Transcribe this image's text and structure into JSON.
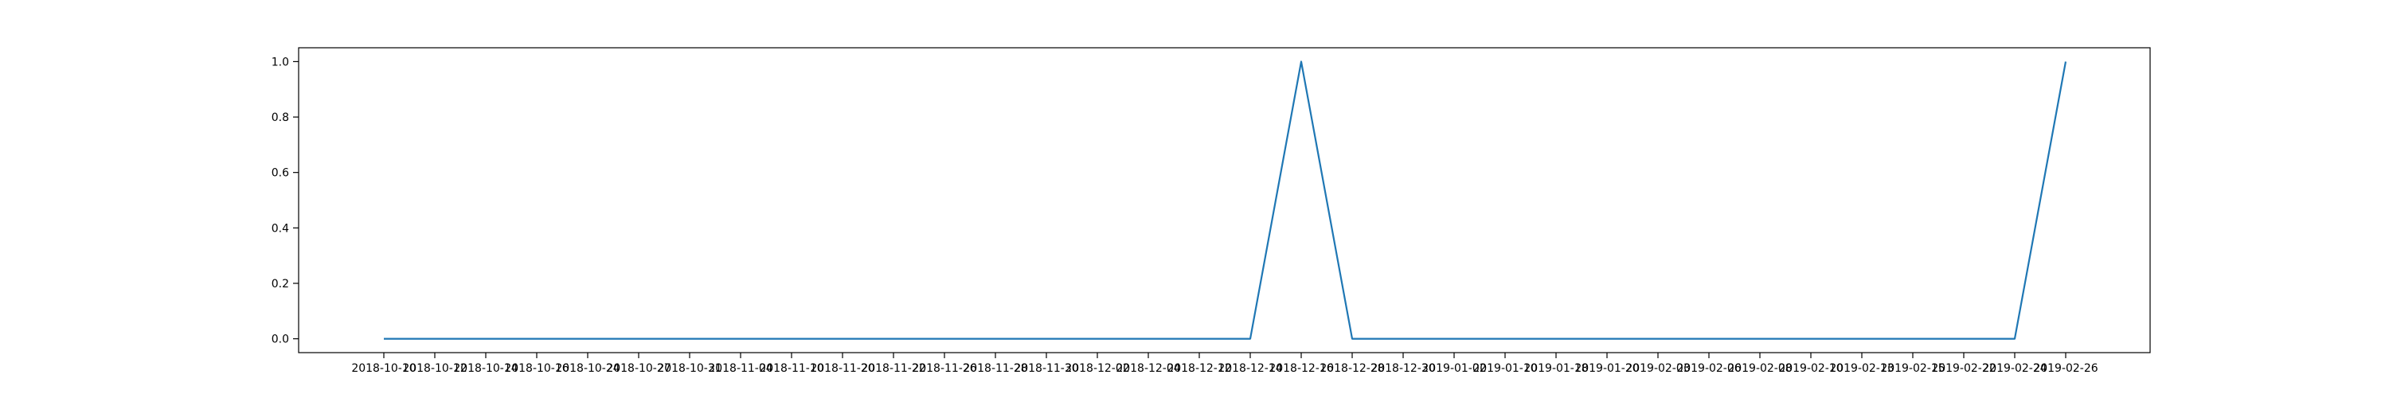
{
  "chart_data": {
    "type": "line",
    "title": "",
    "xlabel": "",
    "ylabel": "",
    "grid": false,
    "ylim": [
      -0.05,
      1.05
    ],
    "y_ticks": [
      "0.0",
      "0.2",
      "0.4",
      "0.6",
      "0.8",
      "1.0"
    ],
    "y_tick_values": [
      0,
      0.2,
      0.4,
      0.6,
      0.8,
      1.0
    ],
    "x_tick_labels": [
      "2018-10-10",
      "2018-10-12",
      "2018-10-14",
      "2018-10-16",
      "2018-10-24",
      "2018-10-27",
      "2018-10-31",
      "2018-11-04",
      "2018-11-10",
      "2018-11-20",
      "2018-11-22",
      "2018-11-26",
      "2018-11-28",
      "2018-11-30",
      "2018-12-02",
      "2018-12-04",
      "2018-12-12",
      "2018-12-14",
      "2018-12-16",
      "2018-12-28",
      "2018-12-30",
      "2019-01-02",
      "2019-01-10",
      "2019-01-18",
      "2019-01-20",
      "2019-02-03",
      "2019-02-06",
      "2019-02-08",
      "2019-02-10",
      "2019-02-13",
      "2019-02-15",
      "2019-02-22",
      "2019-02-24",
      "2019-02-26"
    ],
    "series": [
      {
        "color": "#1f77b4",
        "values": [
          0,
          0,
          0,
          0,
          0,
          0,
          0,
          0,
          0,
          0,
          0,
          0,
          0,
          0,
          0,
          0,
          0,
          0,
          1,
          0,
          0,
          0,
          0,
          0,
          0,
          0,
          0,
          0,
          0,
          0,
          0,
          0,
          0,
          1
        ]
      }
    ]
  }
}
